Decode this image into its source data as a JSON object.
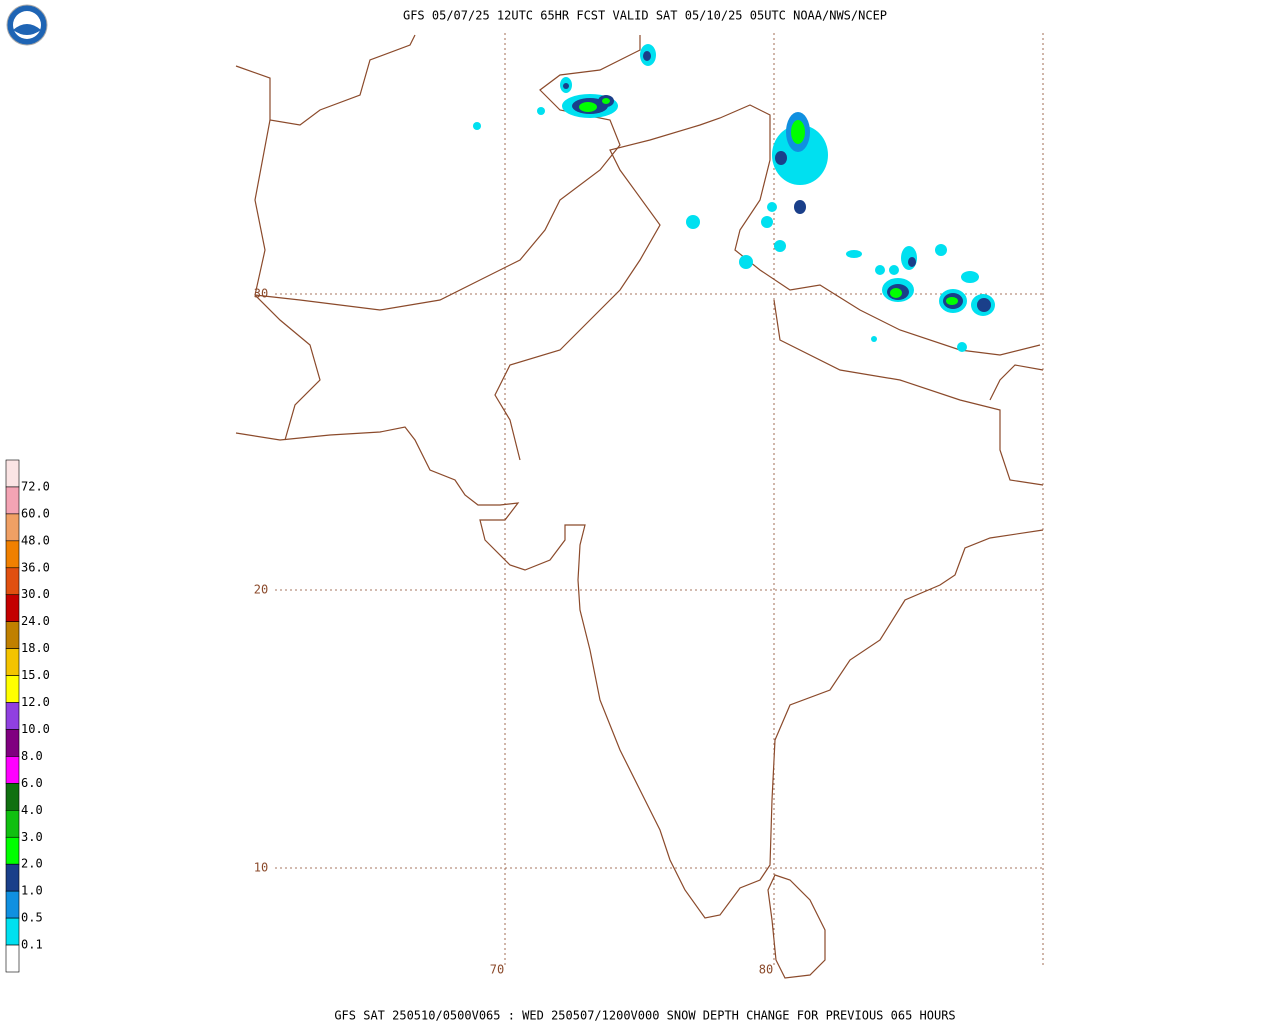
{
  "header": {
    "title": "GFS 05/07/25 12UTC 65HR FCST VALID SAT 05/10/25 05UTC NOAA/NWS/NCEP"
  },
  "footer": "GFS SAT 250510/0500V065 : WED 250507/1200V000 SNOW DEPTH CHANGE FOR PREVIOUS 065 HOURS",
  "map": {
    "lat_labels": [
      "30",
      "20",
      "10"
    ],
    "lon_labels": [
      "70",
      "80"
    ]
  },
  "legend": {
    "labels": [
      "72.0",
      "60.0",
      "48.0",
      "36.0",
      "30.0",
      "24.0",
      "18.0",
      "15.0",
      "12.0",
      "10.0",
      "8.0",
      "6.0",
      "4.0",
      "3.0",
      "2.0",
      "1.0",
      "0.5",
      "0.1"
    ],
    "colors": [
      "#fbe4e4",
      "#f4a4b4",
      "#f0a064",
      "#f08000",
      "#e05010",
      "#c40000",
      "#c08000",
      "#f4c400",
      "#ffff00",
      "#9040e0",
      "#800080",
      "#ff00ff",
      "#107010",
      "#10c010",
      "#00ff00",
      "#1a3f8a",
      "#1090e0",
      "#00e0f0",
      "#ffffff"
    ]
  }
}
